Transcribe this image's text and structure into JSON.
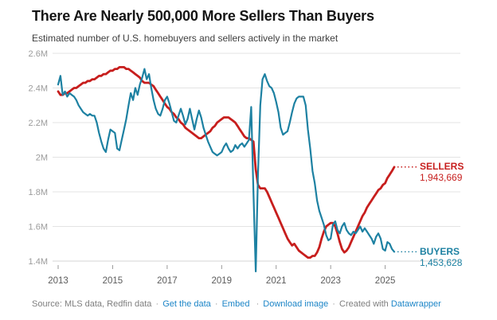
{
  "header": {
    "title": "There Are Nearly 500,000 More Sellers Than Buyers",
    "subtitle": "Estimated number of U.S. homebuyers and sellers actively in the market"
  },
  "chart_data": {
    "type": "line",
    "title": "There Are Nearly 500,000 More Sellers Than Buyers",
    "subtitle": "Estimated number of U.S. homebuyers and sellers actively in the market",
    "values_unit": "millions of people",
    "x_start_month": "2013-01",
    "x_end_month": "2025-05",
    "x_frequency": "monthly",
    "grid": "horizontal",
    "legend_position": "direct-right-labels",
    "y_axis": {
      "min": 1.4,
      "max": 2.6,
      "ticks": [
        {
          "label": "2.6M",
          "value": 2.6
        },
        {
          "label": "2.4M",
          "value": 2.4
        },
        {
          "label": "2.2M",
          "value": 2.2
        },
        {
          "label": "2M",
          "value": 2.0
        },
        {
          "label": "1.8M",
          "value": 1.8
        },
        {
          "label": "1.6M",
          "value": 1.6
        },
        {
          "label": "1.4M",
          "value": 1.4
        }
      ]
    },
    "x_axis": {
      "start_year": 2013,
      "ticks": [
        {
          "label": "2013",
          "year": 2013
        },
        {
          "label": "2015",
          "year": 2015
        },
        {
          "label": "2017",
          "year": 2017
        },
        {
          "label": "2019",
          "year": 2019
        },
        {
          "label": "2021",
          "year": 2021
        },
        {
          "label": "2023",
          "year": 2023
        },
        {
          "label": "2025",
          "year": 2025
        }
      ]
    },
    "colors": {
      "sellers": "#c71e1d",
      "buyers": "#1d81a2",
      "grid": "#e3e3e3",
      "baseline": "#d6d6d6",
      "tick": "#9a9a9a",
      "y_tick_text": "#9b9b9b",
      "x_tick_text": "#5c5c5c",
      "link": "#1c85c7"
    },
    "series": [
      {
        "name": "SELLERS",
        "color": "#c71e1d",
        "stroke_width": 2.8,
        "end_label": "SELLERS",
        "end_value_text": "1,943,669",
        "end_value": 1943669,
        "values": [
          2.38,
          2.36,
          2.36,
          2.37,
          2.37,
          2.38,
          2.39,
          2.4,
          2.4,
          2.41,
          2.42,
          2.43,
          2.43,
          2.44,
          2.44,
          2.45,
          2.45,
          2.46,
          2.47,
          2.47,
          2.48,
          2.48,
          2.49,
          2.5,
          2.5,
          2.51,
          2.51,
          2.52,
          2.52,
          2.52,
          2.51,
          2.51,
          2.5,
          2.49,
          2.48,
          2.47,
          2.46,
          2.44,
          2.43,
          2.43,
          2.43,
          2.42,
          2.41,
          2.39,
          2.37,
          2.35,
          2.33,
          2.31,
          2.29,
          2.28,
          2.26,
          2.25,
          2.23,
          2.22,
          2.2,
          2.19,
          2.17,
          2.16,
          2.15,
          2.14,
          2.13,
          2.12,
          2.11,
          2.11,
          2.12,
          2.13,
          2.14,
          2.15,
          2.17,
          2.18,
          2.2,
          2.21,
          2.22,
          2.23,
          2.23,
          2.23,
          2.22,
          2.21,
          2.2,
          2.18,
          2.16,
          2.14,
          2.12,
          2.11,
          2.11,
          2.1,
          2.09,
          1.93,
          1.84,
          1.82,
          1.82,
          1.82,
          1.8,
          1.77,
          1.74,
          1.71,
          1.68,
          1.65,
          1.62,
          1.59,
          1.56,
          1.53,
          1.51,
          1.49,
          1.5,
          1.48,
          1.46,
          1.45,
          1.44,
          1.43,
          1.42,
          1.42,
          1.43,
          1.43,
          1.45,
          1.48,
          1.53,
          1.57,
          1.6,
          1.61,
          1.62,
          1.62,
          1.6,
          1.56,
          1.51,
          1.47,
          1.45,
          1.46,
          1.48,
          1.51,
          1.54,
          1.57,
          1.6,
          1.63,
          1.66,
          1.68,
          1.71,
          1.73,
          1.75,
          1.77,
          1.79,
          1.81,
          1.82,
          1.84,
          1.85,
          1.88,
          1.9,
          1.92,
          1.943669
        ]
      },
      {
        "name": "BUYERS",
        "color": "#1d81a2",
        "stroke_width": 2.2,
        "end_label": "BUYERS",
        "end_value_text": "1,453,628",
        "end_value": 1453628,
        "values": [
          2.42,
          2.47,
          2.36,
          2.38,
          2.35,
          2.37,
          2.36,
          2.35,
          2.33,
          2.3,
          2.28,
          2.26,
          2.25,
          2.24,
          2.25,
          2.24,
          2.24,
          2.2,
          2.14,
          2.09,
          2.05,
          2.03,
          2.1,
          2.16,
          2.15,
          2.14,
          2.05,
          2.04,
          2.1,
          2.16,
          2.22,
          2.3,
          2.37,
          2.33,
          2.4,
          2.36,
          2.42,
          2.46,
          2.51,
          2.45,
          2.48,
          2.4,
          2.33,
          2.28,
          2.25,
          2.24,
          2.28,
          2.33,
          2.35,
          2.31,
          2.26,
          2.21,
          2.2,
          2.24,
          2.28,
          2.24,
          2.19,
          2.22,
          2.28,
          2.22,
          2.16,
          2.22,
          2.27,
          2.23,
          2.17,
          2.13,
          2.09,
          2.06,
          2.03,
          2.02,
          2.01,
          2.02,
          2.03,
          2.06,
          2.08,
          2.05,
          2.03,
          2.04,
          2.07,
          2.05,
          2.07,
          2.08,
          2.06,
          2.08,
          2.1,
          2.29,
          1.8,
          1.34,
          1.9,
          2.3,
          2.45,
          2.48,
          2.44,
          2.41,
          2.4,
          2.37,
          2.32,
          2.26,
          2.17,
          2.13,
          2.14,
          2.15,
          2.2,
          2.26,
          2.31,
          2.34,
          2.35,
          2.35,
          2.35,
          2.3,
          2.16,
          2.05,
          1.92,
          1.85,
          1.75,
          1.69,
          1.65,
          1.61,
          1.55,
          1.52,
          1.53,
          1.61,
          1.63,
          1.58,
          1.56,
          1.6,
          1.62,
          1.58,
          1.56,
          1.55,
          1.57,
          1.56,
          1.58,
          1.6,
          1.57,
          1.59,
          1.57,
          1.55,
          1.53,
          1.5,
          1.54,
          1.56,
          1.53,
          1.47,
          1.46,
          1.51,
          1.5,
          1.47,
          1.453628
        ]
      }
    ]
  },
  "annotations": {
    "sellers_label": "SELLERS",
    "sellers_value": "1,943,669",
    "buyers_label": "BUYERS",
    "buyers_value": "1,453,628"
  },
  "footer": {
    "source": "Source: MLS data, Redfin data",
    "separator": "·",
    "links": [
      "Get the data",
      "Embed",
      "Download image"
    ],
    "created_with": "Created with",
    "datawrapper": "Datawrapper"
  }
}
